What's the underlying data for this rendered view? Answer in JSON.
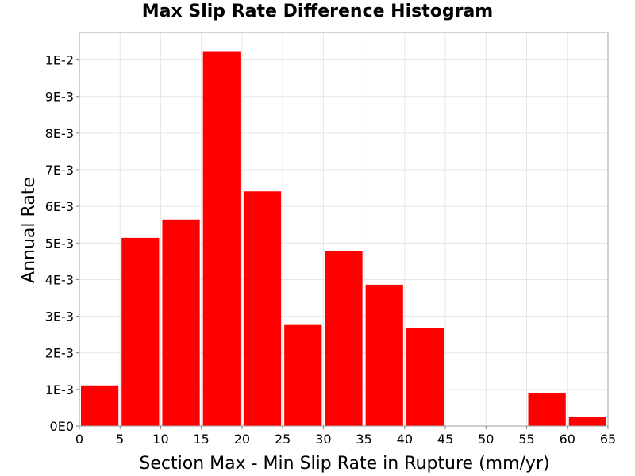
{
  "chart_data": {
    "type": "bar",
    "title": "Max Slip Rate Difference Histogram",
    "xlabel": "Section Max - Min Slip Rate in Rupture (mm/yr)",
    "ylabel": "Annual Rate",
    "bin_width": 5,
    "bins": [
      {
        "x_start": 0,
        "x_end": 5,
        "value": 0.00111
      },
      {
        "x_start": 5,
        "x_end": 10,
        "value": 0.00514
      },
      {
        "x_start": 10,
        "x_end": 15,
        "value": 0.00564
      },
      {
        "x_start": 15,
        "x_end": 20,
        "value": 0.01024
      },
      {
        "x_start": 20,
        "x_end": 25,
        "value": 0.00641
      },
      {
        "x_start": 25,
        "x_end": 30,
        "value": 0.00276
      },
      {
        "x_start": 30,
        "x_end": 35,
        "value": 0.00478
      },
      {
        "x_start": 35,
        "x_end": 40,
        "value": 0.00386
      },
      {
        "x_start": 40,
        "x_end": 45,
        "value": 0.00267
      },
      {
        "x_start": 45,
        "x_end": 50,
        "value": 0
      },
      {
        "x_start": 50,
        "x_end": 55,
        "value": 0
      },
      {
        "x_start": 55,
        "x_end": 60,
        "value": 0.00091
      },
      {
        "x_start": 60,
        "x_end": 65,
        "value": 0.00024
      }
    ],
    "xlim": [
      0,
      65
    ],
    "ylim": [
      0,
      0.01075
    ],
    "x_ticks": [
      {
        "value": 0,
        "label": "0"
      },
      {
        "value": 5,
        "label": "5"
      },
      {
        "value": 10,
        "label": "10"
      },
      {
        "value": 15,
        "label": "15"
      },
      {
        "value": 20,
        "label": "20"
      },
      {
        "value": 25,
        "label": "25"
      },
      {
        "value": 30,
        "label": "30"
      },
      {
        "value": 35,
        "label": "35"
      },
      {
        "value": 40,
        "label": "40"
      },
      {
        "value": 45,
        "label": "45"
      },
      {
        "value": 50,
        "label": "50"
      },
      {
        "value": 55,
        "label": "55"
      },
      {
        "value": 60,
        "label": "60"
      },
      {
        "value": 65,
        "label": "65"
      }
    ],
    "y_ticks": [
      {
        "value": 0,
        "label": "0E0"
      },
      {
        "value": 0.001,
        "label": "1E-3"
      },
      {
        "value": 0.002,
        "label": "2E-3"
      },
      {
        "value": 0.003,
        "label": "3E-3"
      },
      {
        "value": 0.004,
        "label": "4E-3"
      },
      {
        "value": 0.005,
        "label": "5E-3"
      },
      {
        "value": 0.006,
        "label": "6E-3"
      },
      {
        "value": 0.007,
        "label": "7E-3"
      },
      {
        "value": 0.008,
        "label": "8E-3"
      },
      {
        "value": 0.009,
        "label": "9E-3"
      },
      {
        "value": 0.01,
        "label": "1E-2"
      }
    ],
    "grid": true,
    "legend": "none",
    "colors": {
      "bar": "#ff0000",
      "grid": "#e6e6e6",
      "frame": "#a0a0a0"
    }
  }
}
